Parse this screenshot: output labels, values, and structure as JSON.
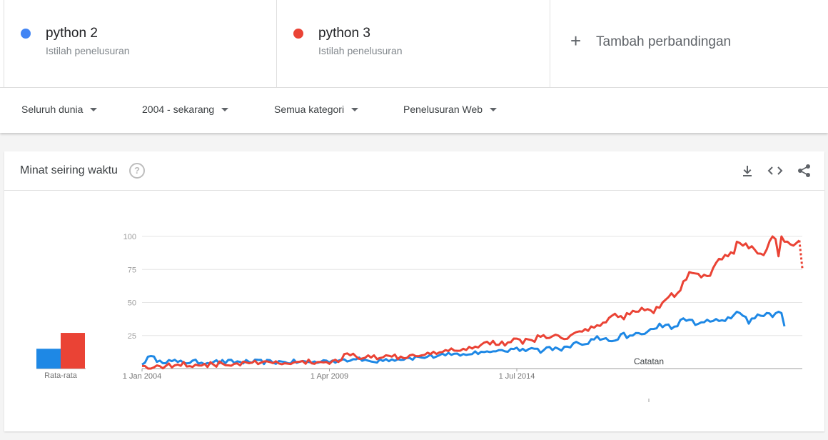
{
  "terms": [
    {
      "name": "python 2",
      "sub": "Istilah penelusuran",
      "color": "#4285f4"
    },
    {
      "name": "python 3",
      "sub": "Istilah penelusuran",
      "color": "#ea4335"
    }
  ],
  "add_compare": {
    "label": "Tambah perbandingan",
    "icon": "plus-icon"
  },
  "filters": [
    {
      "label": "Seluruh dunia"
    },
    {
      "label": "2004 - sekarang"
    },
    {
      "label": "Semua kategori"
    },
    {
      "label": "Penelusuran Web"
    }
  ],
  "card": {
    "title": "Minat seiring waktu",
    "icons": [
      "help-icon",
      "download-icon",
      "embed-icon",
      "share-icon"
    ]
  },
  "avg_label": "Rata-rata",
  "note_label": "Catatan",
  "chart_data": {
    "type": "line",
    "x_start": "2004-01",
    "x_step": "month",
    "x_tick_labels": [
      "1 Jan 2004",
      "1 Apr 2009",
      "1 Jul 2014"
    ],
    "y_ticks": [
      25,
      50,
      75,
      100
    ],
    "ylim": [
      0,
      100
    ],
    "grid": true,
    "averages": [
      {
        "name": "python 2",
        "value": 15
      },
      {
        "name": "python 3",
        "value": 27
      }
    ],
    "series": [
      {
        "name": "python 2",
        "color": "#1e88e5",
        "keyframes": [
          [
            0,
            3
          ],
          [
            2,
            9
          ],
          [
            6,
            6
          ],
          [
            12,
            5
          ],
          [
            24,
            5
          ],
          [
            36,
            5
          ],
          [
            48,
            5
          ],
          [
            60,
            5
          ],
          [
            62,
            6
          ],
          [
            66,
            6
          ],
          [
            68,
            7
          ],
          [
            70,
            6
          ],
          [
            72,
            7
          ],
          [
            76,
            6
          ],
          [
            78,
            5
          ],
          [
            80,
            7
          ],
          [
            84,
            7
          ],
          [
            90,
            8
          ],
          [
            96,
            9
          ],
          [
            102,
            10
          ],
          [
            108,
            11
          ],
          [
            111,
            11
          ],
          [
            112,
            13
          ],
          [
            113,
            11
          ],
          [
            116,
            13
          ],
          [
            120,
            14
          ],
          [
            122,
            13
          ],
          [
            124,
            15
          ],
          [
            128,
            15
          ],
          [
            132,
            15
          ],
          [
            133,
            15
          ],
          [
            134,
            12
          ],
          [
            136,
            16
          ],
          [
            140,
            15
          ],
          [
            144,
            16
          ],
          [
            145,
            19
          ],
          [
            148,
            18
          ],
          [
            152,
            22
          ],
          [
            156,
            23
          ],
          [
            160,
            22
          ],
          [
            161,
            26
          ],
          [
            164,
            25
          ],
          [
            168,
            26
          ],
          [
            170,
            28
          ],
          [
            172,
            30
          ],
          [
            174,
            34
          ],
          [
            176,
            33
          ],
          [
            178,
            30
          ],
          [
            180,
            32
          ],
          [
            182,
            38
          ],
          [
            184,
            37
          ],
          [
            186,
            33
          ],
          [
            188,
            35
          ],
          [
            190,
            37
          ],
          [
            192,
            36
          ],
          [
            194,
            36
          ],
          [
            196,
            36
          ],
          [
            198,
            38
          ],
          [
            200,
            43
          ],
          [
            202,
            40
          ],
          [
            204,
            34
          ],
          [
            206,
            38
          ],
          [
            207,
            41
          ],
          [
            208,
            40
          ],
          [
            210,
            42
          ],
          [
            212,
            39
          ],
          [
            214,
            43
          ],
          [
            215,
            42
          ],
          [
            216,
            32
          ]
        ],
        "jitter_amp": 1.8
      },
      {
        "name": "python 3",
        "color": "#ea4335",
        "keyframes": [
          [
            0,
            2
          ],
          [
            4,
            1
          ],
          [
            8,
            2
          ],
          [
            12,
            3
          ],
          [
            24,
            3
          ],
          [
            36,
            4
          ],
          [
            48,
            4
          ],
          [
            60,
            5
          ],
          [
            66,
            5
          ],
          [
            68,
            11
          ],
          [
            70,
            10
          ],
          [
            72,
            9
          ],
          [
            76,
            10
          ],
          [
            78,
            10
          ],
          [
            80,
            8
          ],
          [
            84,
            9
          ],
          [
            90,
            10
          ],
          [
            96,
            12
          ],
          [
            102,
            14
          ],
          [
            108,
            15
          ],
          [
            114,
            18
          ],
          [
            118,
            21
          ],
          [
            120,
            18
          ],
          [
            124,
            20
          ],
          [
            130,
            22
          ],
          [
            134,
            24
          ],
          [
            136,
            23
          ],
          [
            140,
            25
          ],
          [
            144,
            25
          ],
          [
            148,
            28
          ],
          [
            152,
            31
          ],
          [
            156,
            35
          ],
          [
            158,
            40
          ],
          [
            160,
            39
          ],
          [
            164,
            41
          ],
          [
            166,
            43
          ],
          [
            168,
            46
          ],
          [
            170,
            45
          ],
          [
            172,
            42
          ],
          [
            174,
            46
          ],
          [
            176,
            52
          ],
          [
            178,
            57
          ],
          [
            180,
            57
          ],
          [
            182,
            66
          ],
          [
            184,
            73
          ],
          [
            186,
            72
          ],
          [
            188,
            69
          ],
          [
            190,
            70
          ],
          [
            192,
            76
          ],
          [
            194,
            83
          ],
          [
            196,
            86
          ],
          [
            198,
            88
          ],
          [
            199,
            87
          ],
          [
            200,
            96
          ],
          [
            201,
            95
          ],
          [
            202,
            93
          ],
          [
            204,
            91
          ],
          [
            206,
            90
          ],
          [
            208,
            87
          ],
          [
            210,
            90
          ],
          [
            212,
            100
          ],
          [
            213,
            98
          ],
          [
            214,
            85
          ],
          [
            215,
            100
          ],
          [
            216,
            96
          ],
          [
            217,
            96
          ],
          [
            218,
            94
          ],
          [
            219,
            93
          ],
          [
            220,
            95
          ],
          [
            221,
            97
          ]
        ],
        "projected": [
          [
            221,
            97
          ],
          [
            222,
            76
          ]
        ],
        "jitter_amp": 2.2
      }
    ]
  }
}
